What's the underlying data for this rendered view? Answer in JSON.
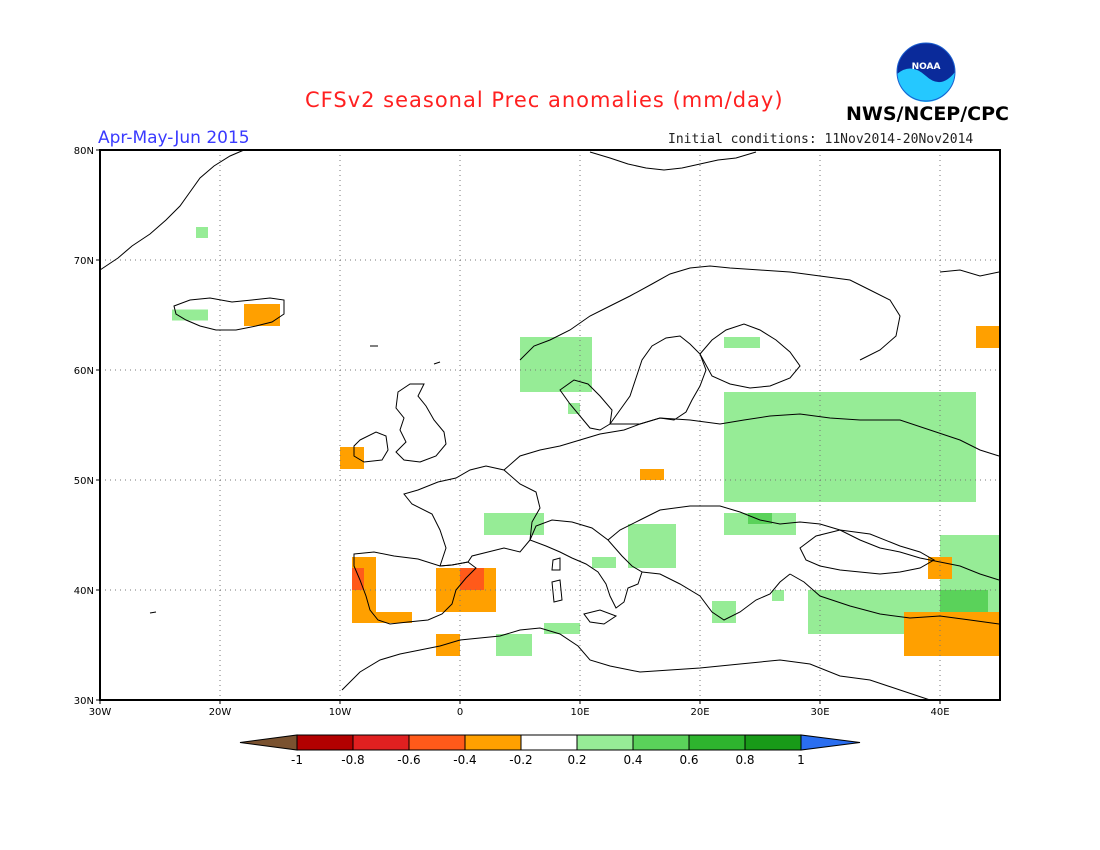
{
  "header": {
    "title": "CFSv2 seasonal Prec anomalies (mm/day)",
    "period": "Apr-May-Jun 2015",
    "initial_conditions": "Initial conditions: 11Nov2014-20Nov2014",
    "agency": "NWS/NCEP/CPC",
    "logo_text": "NOAA"
  },
  "map": {
    "lon_range": [
      -30,
      45
    ],
    "lat_range": [
      30,
      80
    ],
    "lat_ticks": [
      "30N",
      "40N",
      "50N",
      "60N",
      "70N",
      "80N"
    ],
    "lon_ticks": [
      "30W",
      "20W",
      "10W",
      "0",
      "10E",
      "20E",
      "30E",
      "40E"
    ],
    "grid": true
  },
  "colorbar": {
    "labels": [
      "-1",
      "-0.8",
      "-0.6",
      "-0.4",
      "-0.2",
      "0.2",
      "0.4",
      "0.6",
      "0.8",
      "1"
    ],
    "colors": [
      "#7a5230",
      "#b20000",
      "#e02020",
      "#ff5a1a",
      "#ffa000",
      "#ffffff",
      "#96ec96",
      "#5ad25a",
      "#2eb42e",
      "#189a18",
      "#2a6ef0"
    ]
  },
  "anomaly_regions": [
    {
      "name": "iceland-west",
      "lon": [
        -24,
        -21
      ],
      "lat": [
        64.5,
        65.5
      ],
      "level": "0.2"
    },
    {
      "name": "iceland-east",
      "lon": [
        -18,
        -15
      ],
      "lat": [
        64,
        66
      ],
      "level": "-0.2"
    },
    {
      "name": "svalbard-dot",
      "lon": [
        -22,
        -21
      ],
      "lat": [
        72,
        73
      ],
      "level": "0.2"
    },
    {
      "name": "norway-west",
      "lon": [
        5,
        11
      ],
      "lat": [
        58,
        63
      ],
      "level": "0.2"
    },
    {
      "name": "sweden-dot",
      "lon": [
        9,
        10
      ],
      "lat": [
        56,
        57
      ],
      "level": "0.2"
    },
    {
      "name": "finland-east",
      "lon": [
        22,
        25
      ],
      "lat": [
        62,
        63
      ],
      "level": "0.2"
    },
    {
      "name": "russia-west",
      "lon": [
        22,
        43
      ],
      "lat": [
        48,
        58
      ],
      "level": "0.2"
    },
    {
      "name": "russia-ne-corner",
      "lon": [
        43,
        45
      ],
      "lat": [
        62,
        64
      ],
      "level": "-0.2"
    },
    {
      "name": "ireland-south",
      "lon": [
        -10,
        -8
      ],
      "lat": [
        51,
        53
      ],
      "level": "-0.2"
    },
    {
      "name": "poland-spot",
      "lon": [
        15,
        17
      ],
      "lat": [
        50,
        51
      ],
      "level": "-0.2"
    },
    {
      "name": "alps-north",
      "lon": [
        2,
        7
      ],
      "lat": [
        45,
        47
      ],
      "level": "0.2"
    },
    {
      "name": "balkans",
      "lon": [
        14,
        18
      ],
      "lat": [
        42,
        46
      ],
      "level": "0.2"
    },
    {
      "name": "hungary-romania",
      "lon": [
        22,
        28
      ],
      "lat": [
        45,
        47
      ],
      "level": "0.2"
    },
    {
      "name": "hungary-core",
      "lon": [
        24,
        26
      ],
      "lat": [
        46,
        47
      ],
      "level": "0.4"
    },
    {
      "name": "italy-central",
      "lon": [
        11,
        13
      ],
      "lat": [
        42,
        43
      ],
      "level": "0.2"
    },
    {
      "name": "greece",
      "lon": [
        21,
        23
      ],
      "lat": [
        37,
        39
      ],
      "level": "0.2"
    },
    {
      "name": "aegean",
      "lon": [
        26,
        27
      ],
      "lat": [
        39,
        40
      ],
      "level": "0.2"
    },
    {
      "name": "turkey",
      "lon": [
        29,
        44
      ],
      "lat": [
        36,
        40
      ],
      "level": "0.2"
    },
    {
      "name": "caucasus",
      "lon": [
        40,
        45
      ],
      "lat": [
        38,
        45
      ],
      "level": "0.2"
    },
    {
      "name": "caucasus-core",
      "lon": [
        40,
        44
      ],
      "lat": [
        38,
        40
      ],
      "level": "0.4"
    },
    {
      "name": "east-turkey-dry",
      "lon": [
        37,
        45
      ],
      "lat": [
        34,
        38
      ],
      "level": "-0.2"
    },
    {
      "name": "caucasus-dry",
      "lon": [
        39,
        41
      ],
      "lat": [
        41,
        43
      ],
      "level": "-0.2"
    },
    {
      "name": "portugal",
      "lon": [
        -9,
        -7
      ],
      "lat": [
        37,
        43
      ],
      "level": "-0.2"
    },
    {
      "name": "portugal-core",
      "lon": [
        -9,
        -8
      ],
      "lat": [
        40,
        42
      ],
      "level": "-0.4"
    },
    {
      "name": "algarve",
      "lon": [
        -7,
        -4
      ],
      "lat": [
        37,
        38
      ],
      "level": "-0.2"
    },
    {
      "name": "spain-east",
      "lon": [
        -2,
        3
      ],
      "lat": [
        38,
        42
      ],
      "level": "-0.2"
    },
    {
      "name": "catalonia",
      "lon": [
        0,
        2
      ],
      "lat": [
        40,
        42
      ],
      "level": "-0.4"
    },
    {
      "name": "north-africa-dry",
      "lon": [
        -2,
        0
      ],
      "lat": [
        34,
        36
      ],
      "level": "-0.2"
    },
    {
      "name": "north-africa-wet",
      "lon": [
        3,
        6
      ],
      "lat": [
        34,
        36
      ],
      "level": "0.2"
    },
    {
      "name": "tunisia-wet",
      "lon": [
        7,
        10
      ],
      "lat": [
        36,
        37
      ],
      "level": "0.2"
    }
  ]
}
